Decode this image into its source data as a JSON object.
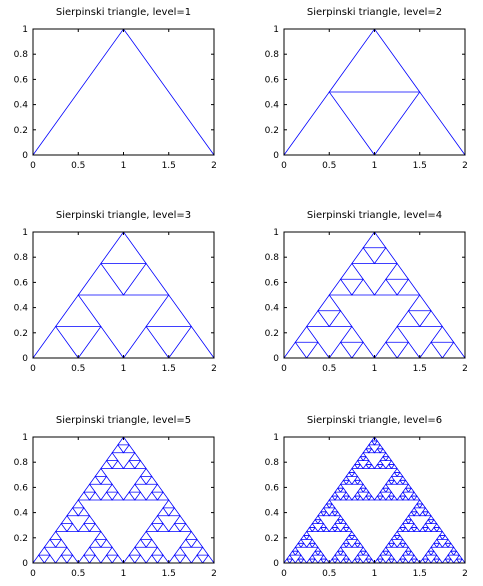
{
  "chart_data": [
    {
      "type": "line",
      "title": "Sierpinski triangle, level=1",
      "level": 1,
      "xlabel": "",
      "ylabel": "",
      "xlim": [
        0,
        2
      ],
      "ylim": [
        0,
        1
      ],
      "xticks": [
        "0",
        "0.5",
        "1",
        "1.5",
        "2"
      ],
      "xtick_values": [
        0,
        0.5,
        1,
        1.5,
        2
      ],
      "yticks": [
        "0",
        "0.2",
        "0.4",
        "0.6",
        "0.8",
        "1"
      ],
      "ytick_values": [
        0,
        0.2,
        0.4,
        0.6,
        0.8,
        1
      ],
      "outer_triangle": [
        [
          0,
          0
        ],
        [
          1,
          1
        ],
        [
          2,
          0
        ]
      ],
      "grid": false,
      "color": "#0000ff"
    },
    {
      "type": "line",
      "title": "Sierpinski triangle, level=2",
      "level": 2,
      "xlabel": "",
      "ylabel": "",
      "xlim": [
        0,
        2
      ],
      "ylim": [
        0,
        1
      ],
      "xticks": [
        "0",
        "0.5",
        "1",
        "1.5",
        "2"
      ],
      "xtick_values": [
        0,
        0.5,
        1,
        1.5,
        2
      ],
      "yticks": [
        "0",
        "0.2",
        "0.4",
        "0.6",
        "0.8",
        "1"
      ],
      "ytick_values": [
        0,
        0.2,
        0.4,
        0.6,
        0.8,
        1
      ],
      "outer_triangle": [
        [
          0,
          0
        ],
        [
          1,
          1
        ],
        [
          2,
          0
        ]
      ],
      "grid": false,
      "color": "#0000ff"
    },
    {
      "type": "line",
      "title": "Sierpinski triangle, level=3",
      "level": 3,
      "xlabel": "",
      "ylabel": "",
      "xlim": [
        0,
        2
      ],
      "ylim": [
        0,
        1
      ],
      "xticks": [
        "0",
        "0.5",
        "1",
        "1.5",
        "2"
      ],
      "xtick_values": [
        0,
        0.5,
        1,
        1.5,
        2
      ],
      "yticks": [
        "0",
        "0.2",
        "0.4",
        "0.6",
        "0.8",
        "1"
      ],
      "ytick_values": [
        0,
        0.2,
        0.4,
        0.6,
        0.8,
        1
      ],
      "outer_triangle": [
        [
          0,
          0
        ],
        [
          1,
          1
        ],
        [
          2,
          0
        ]
      ],
      "grid": false,
      "color": "#0000ff"
    },
    {
      "type": "line",
      "title": "Sierpinski triangle, level=4",
      "level": 4,
      "xlabel": "",
      "ylabel": "",
      "xlim": [
        0,
        2
      ],
      "ylim": [
        0,
        1
      ],
      "xticks": [
        "0",
        "0.5",
        "1",
        "1.5",
        "2"
      ],
      "xtick_values": [
        0,
        0.5,
        1,
        1.5,
        2
      ],
      "yticks": [
        "0",
        "0.2",
        "0.4",
        "0.6",
        "0.8",
        "1"
      ],
      "ytick_values": [
        0,
        0.2,
        0.4,
        0.6,
        0.8,
        1
      ],
      "outer_triangle": [
        [
          0,
          0
        ],
        [
          1,
          1
        ],
        [
          2,
          0
        ]
      ],
      "grid": false,
      "color": "#0000ff"
    },
    {
      "type": "line",
      "title": "Sierpinski triangle, level=5",
      "level": 5,
      "xlabel": "",
      "ylabel": "",
      "xlim": [
        0,
        2
      ],
      "ylim": [
        0,
        1
      ],
      "xticks": [
        "0",
        "0.5",
        "1",
        "1.5",
        "2"
      ],
      "xtick_values": [
        0,
        0.5,
        1,
        1.5,
        2
      ],
      "yticks": [
        "0",
        "0.2",
        "0.4",
        "0.6",
        "0.8",
        "1"
      ],
      "ytick_values": [
        0,
        0.2,
        0.4,
        0.6,
        0.8,
        1
      ],
      "outer_triangle": [
        [
          0,
          0
        ],
        [
          1,
          1
        ],
        [
          2,
          0
        ]
      ],
      "grid": false,
      "color": "#0000ff"
    },
    {
      "type": "line",
      "title": "Sierpinski triangle, level=6",
      "level": 6,
      "xlabel": "",
      "ylabel": "",
      "xlim": [
        0,
        2
      ],
      "ylim": [
        0,
        1
      ],
      "xticks": [
        "0",
        "0.5",
        "1",
        "1.5",
        "2"
      ],
      "xtick_values": [
        0,
        0.5,
        1,
        1.5,
        2
      ],
      "yticks": [
        "0",
        "0.2",
        "0.4",
        "0.6",
        "0.8",
        "1"
      ],
      "ytick_values": [
        0,
        0.2,
        0.4,
        0.6,
        0.8,
        1
      ],
      "outer_triangle": [
        [
          0,
          0
        ],
        [
          1,
          1
        ],
        [
          2,
          0
        ]
      ],
      "grid": false,
      "color": "#0000ff"
    }
  ]
}
